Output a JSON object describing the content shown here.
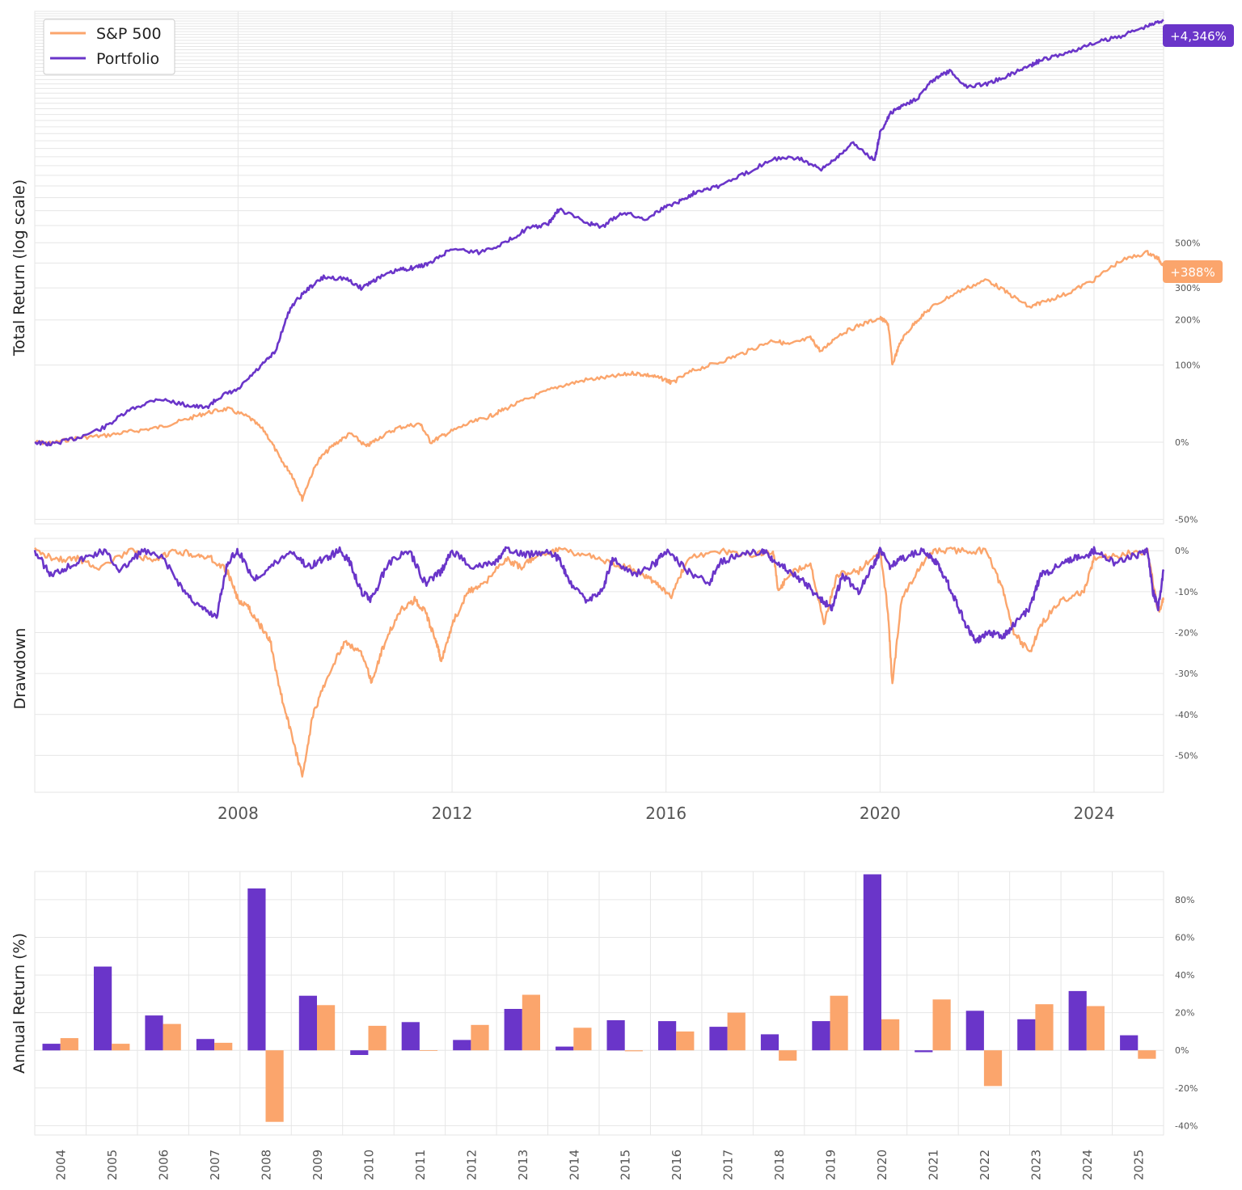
{
  "colors": {
    "portfolio": "#6a35c9",
    "sp500": "#fba56c",
    "grid": "#e6e6e6",
    "tick_text": "#555555",
    "axis_label": "#222222"
  },
  "legend": {
    "placement": "top-left",
    "items": [
      {
        "label": "S&P 500",
        "color": "#fba56c"
      },
      {
        "label": "Portfolio",
        "color": "#6a35c9"
      }
    ]
  },
  "chart_data": [
    {
      "type": "line",
      "ylabel": "Total Return (log scale)",
      "yscale": "log",
      "ylim_pct": [
        -52,
        4700
      ],
      "xlim": [
        2004.2,
        2025.3
      ],
      "y_tick_labels": [
        {
          "value": 500,
          "label": "500%"
        },
        {
          "value": 300,
          "label": "300%"
        },
        {
          "value": 200,
          "label": "200%"
        },
        {
          "value": 100,
          "label": "100%"
        },
        {
          "value": 0,
          "label": "0%"
        },
        {
          "value": -50,
          "label": "-50%"
        }
      ],
      "end_labels": {
        "portfolio": "+4,346%",
        "sp500": "+388%"
      },
      "series": [
        {
          "name": "Portfolio",
          "x": [
            2004.2,
            2004.5,
            2005.0,
            2005.5,
            2006.0,
            2006.5,
            2007.0,
            2007.4,
            2007.7,
            2008.0,
            2008.4,
            2008.7,
            2009.0,
            2009.3,
            2009.6,
            2010.0,
            2010.3,
            2010.6,
            2011.0,
            2011.3,
            2011.6,
            2012.0,
            2012.5,
            2013.0,
            2013.4,
            2013.8,
            2014.0,
            2014.5,
            2014.8,
            2015.2,
            2015.6,
            2016.0,
            2016.3,
            2016.6,
            2017.0,
            2017.5,
            2018.0,
            2018.5,
            2018.9,
            2019.2,
            2019.5,
            2019.9,
            2020.0,
            2020.2,
            2020.4,
            2020.7,
            2021.0,
            2021.3,
            2021.6,
            2022.0,
            2022.4,
            2022.8,
            2023.0,
            2023.5,
            2024.0,
            2024.5,
            2025.0,
            2025.3
          ],
          "values": [
            0,
            -2,
            4,
            14,
            34,
            48,
            40,
            36,
            52,
            60,
            95,
            125,
            240,
            295,
            340,
            335,
            300,
            335,
            370,
            380,
            400,
            470,
            450,
            500,
            580,
            610,
            710,
            620,
            590,
            690,
            640,
            730,
            780,
            860,
            900,
            1020,
            1180,
            1180,
            1050,
            1200,
            1370,
            1150,
            1500,
            1820,
            1950,
            2100,
            2500,
            2700,
            2350,
            2400,
            2600,
            2850,
            2990,
            3200,
            3500,
            3750,
            4100,
            4346
          ]
        },
        {
          "name": "S&P 500",
          "x": [
            2004.2,
            2004.5,
            2005.0,
            2005.5,
            2006.0,
            2006.5,
            2007.0,
            2007.4,
            2007.8,
            2008.2,
            2008.5,
            2008.8,
            2009.0,
            2009.2,
            2009.5,
            2009.8,
            2010.1,
            2010.4,
            2010.6,
            2011.0,
            2011.4,
            2011.6,
            2011.9,
            2012.3,
            2012.7,
            2013.0,
            2013.5,
            2014.0,
            2014.5,
            2015.0,
            2015.4,
            2015.7,
            2016.0,
            2016.1,
            2016.5,
            2017.0,
            2017.5,
            2018.0,
            2018.3,
            2018.7,
            2018.9,
            2019.2,
            2019.6,
            2020.0,
            2020.15,
            2020.23,
            2020.4,
            2020.7,
            2021.0,
            2021.5,
            2022.0,
            2022.4,
            2022.8,
            2023.0,
            2023.5,
            2024.0,
            2024.5,
            2025.0,
            2025.2,
            2025.3
          ],
          "values": [
            0,
            -1,
            4,
            6,
            10,
            14,
            22,
            30,
            35,
            25,
            10,
            -15,
            -25,
            -40,
            -15,
            -2,
            8,
            -4,
            3,
            14,
            18,
            0,
            8,
            18,
            26,
            35,
            50,
            65,
            75,
            80,
            86,
            82,
            75,
            70,
            90,
            105,
            125,
            150,
            140,
            155,
            125,
            160,
            185,
            205,
            190,
            100,
            150,
            200,
            240,
            290,
            330,
            280,
            235,
            250,
            280,
            330,
            410,
            450,
            420,
            388
          ]
        }
      ]
    },
    {
      "type": "line",
      "ylabel": "Drawdown",
      "ylim_pct": [
        -59,
        3
      ],
      "x_tick_labels": [
        "2008",
        "2012",
        "2016",
        "2020",
        "2024"
      ],
      "y_tick_labels": [
        {
          "value": 0,
          "label": "0%"
        },
        {
          "value": -10,
          "label": "-10%"
        },
        {
          "value": -20,
          "label": "-20%"
        },
        {
          "value": -30,
          "label": "-30%"
        },
        {
          "value": -40,
          "label": "-40%"
        },
        {
          "value": -50,
          "label": "-50%"
        }
      ],
      "series": [
        {
          "name": "S&P 500",
          "x": [
            2004.2,
            2004.6,
            2005.0,
            2005.4,
            2006.0,
            2006.4,
            2006.8,
            2007.2,
            2007.5,
            2007.8,
            2008.0,
            2008.2,
            2008.4,
            2008.6,
            2008.8,
            2009.0,
            2009.2,
            2009.4,
            2009.7,
            2010.0,
            2010.3,
            2010.5,
            2010.7,
            2011.0,
            2011.3,
            2011.5,
            2011.7,
            2011.8,
            2012.0,
            2012.3,
            2012.6,
            2013.0,
            2013.3,
            2013.6,
            2014.0,
            2014.5,
            2015.0,
            2015.5,
            2015.8,
            2016.1,
            2016.4,
            2017.0,
            2017.5,
            2018.0,
            2018.1,
            2018.3,
            2018.7,
            2018.95,
            2019.2,
            2019.6,
            2020.0,
            2020.15,
            2020.23,
            2020.4,
            2020.7,
            2021.0,
            2021.5,
            2022.0,
            2022.3,
            2022.5,
            2022.8,
            2023.0,
            2023.4,
            2023.8,
            2024.0,
            2024.5,
            2025.0,
            2025.2,
            2025.3
          ],
          "values": [
            0,
            -2,
            -2,
            -4,
            0,
            -3,
            0,
            -1,
            -2,
            -5,
            -12,
            -14,
            -18,
            -22,
            -35,
            -45,
            -55,
            -40,
            -30,
            -22,
            -25,
            -32,
            -24,
            -15,
            -12,
            -15,
            -22,
            -27,
            -18,
            -10,
            -8,
            -2,
            -4,
            -1,
            0,
            -1,
            -3,
            -5,
            -8,
            -11,
            -2,
            0,
            -1,
            0,
            -10,
            -6,
            -3,
            -18,
            -6,
            -5,
            0,
            -15,
            -33,
            -12,
            -5,
            0,
            0,
            0,
            -10,
            -20,
            -25,
            -18,
            -12,
            -10,
            -2,
            -1,
            0,
            -15,
            -12
          ]
        },
        {
          "name": "Portfolio",
          "x": [
            2004.2,
            2004.5,
            2004.8,
            2005.1,
            2005.5,
            2005.8,
            2006.2,
            2006.6,
            2007.0,
            2007.3,
            2007.6,
            2007.8,
            2008.0,
            2008.3,
            2008.6,
            2009.0,
            2009.3,
            2009.6,
            2009.9,
            2010.1,
            2010.3,
            2010.5,
            2010.8,
            2011.2,
            2011.5,
            2011.8,
            2012.0,
            2012.4,
            2012.8,
            2013.0,
            2013.4,
            2013.8,
            2014.0,
            2014.2,
            2014.5,
            2014.8,
            2015.0,
            2015.4,
            2015.8,
            2016.0,
            2016.4,
            2016.8,
            2017.0,
            2017.4,
            2017.8,
            2018.0,
            2018.3,
            2018.6,
            2018.9,
            2019.1,
            2019.3,
            2019.6,
            2019.9,
            2020.0,
            2020.2,
            2020.4,
            2020.8,
            2021.0,
            2021.2,
            2021.4,
            2021.6,
            2021.8,
            2022.0,
            2022.3,
            2022.5,
            2022.8,
            2023.0,
            2023.3,
            2023.6,
            2023.9,
            2024.0,
            2024.4,
            2024.8,
            2025.0,
            2025.1,
            2025.2,
            2025.3
          ],
          "values": [
            0,
            -6,
            -4,
            -2,
            0,
            -5,
            0,
            -2,
            -10,
            -14,
            -16,
            -3,
            0,
            -7,
            -4,
            0,
            -4,
            -2,
            0,
            -3,
            -10,
            -12,
            -3,
            0,
            -8,
            -5,
            0,
            -4,
            -3,
            0,
            -1,
            0,
            -2,
            -8,
            -12,
            -10,
            -2,
            -6,
            -3,
            0,
            -5,
            -8,
            -3,
            -1,
            0,
            -2,
            -5,
            -8,
            -12,
            -14,
            -6,
            -10,
            -3,
            0,
            -4,
            -2,
            0,
            -2,
            -6,
            -12,
            -18,
            -22,
            -20,
            -21,
            -18,
            -14,
            -6,
            -4,
            -2,
            -1,
            0,
            -3,
            -1,
            0,
            -10,
            -14,
            -5
          ]
        }
      ]
    },
    {
      "type": "bar",
      "ylabel": "Annual Return (%)",
      "ylim": [
        -45,
        95
      ],
      "y_tick_labels": [
        {
          "value": 80,
          "label": "80%"
        },
        {
          "value": 60,
          "label": "60%"
        },
        {
          "value": 40,
          "label": "40%"
        },
        {
          "value": 20,
          "label": "20%"
        },
        {
          "value": 0,
          "label": "0%"
        },
        {
          "value": -20,
          "label": "-20%"
        },
        {
          "value": -40,
          "label": "-40%"
        }
      ],
      "categories": [
        "2004",
        "2005",
        "2006",
        "2007",
        "2008",
        "2009",
        "2010",
        "2011",
        "2012",
        "2013",
        "2014",
        "2015",
        "2016",
        "2017",
        "2018",
        "2019",
        "2020",
        "2021",
        "2022",
        "2023",
        "2024",
        "2025"
      ],
      "series": [
        {
          "name": "Portfolio",
          "values": [
            3.5,
            44.5,
            18.5,
            6,
            86,
            29,
            -2.5,
            15,
            5.5,
            22,
            2,
            16,
            15.5,
            12.5,
            8.5,
            15.5,
            93.5,
            -1,
            21,
            16.5,
            31.5,
            8
          ]
        },
        {
          "name": "S&P 500",
          "values": [
            6.5,
            3.5,
            14,
            4,
            -38,
            24,
            13,
            0,
            13.5,
            29.5,
            12,
            -0.5,
            10,
            20,
            -5.5,
            29,
            16.5,
            27,
            -19,
            24.5,
            23.5,
            -4.5
          ]
        }
      ]
    }
  ]
}
